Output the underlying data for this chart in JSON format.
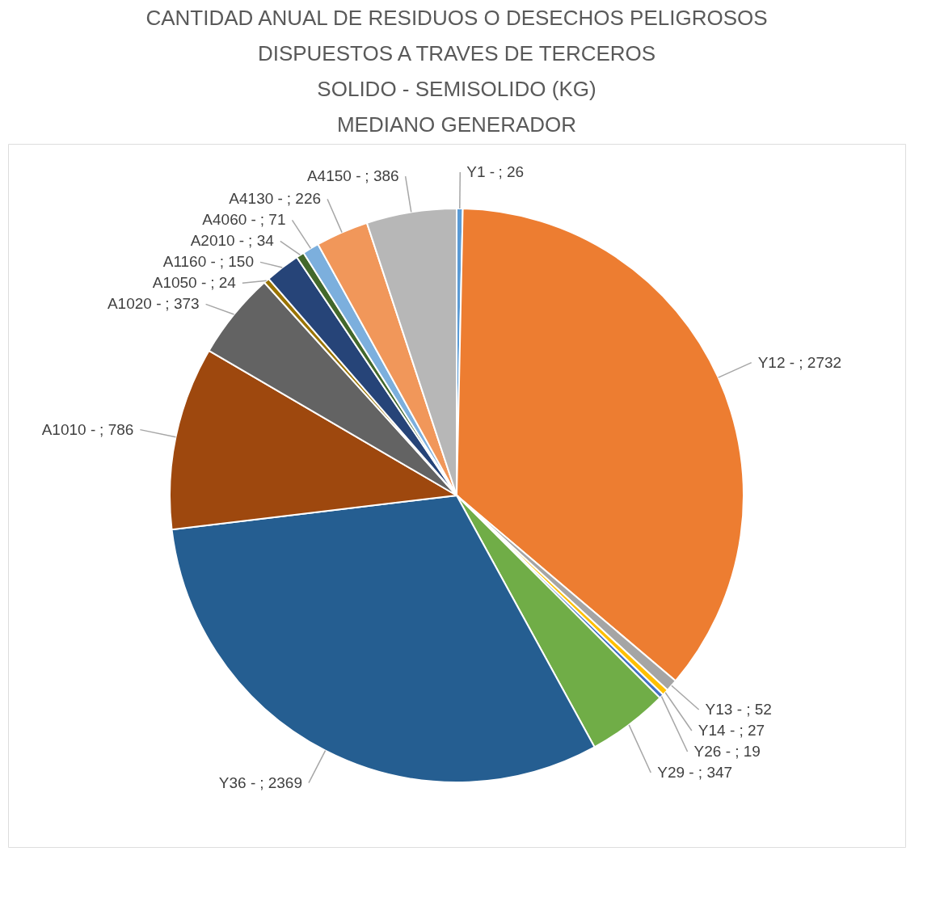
{
  "chart_data": {
    "type": "pie",
    "title": [
      "CANTIDAD ANUAL DE RESIDUOS O DESECHOS PELIGROSOS",
      "DISPUESTOS A TRAVES DE TERCEROS",
      "SOLIDO - SEMISOLIDO (KG)",
      "MEDIANO GENERADOR"
    ],
    "categories": [
      "Y1 -",
      "Y12 -",
      "Y13 -",
      "Y14 -",
      "Y26 -",
      "Y29 -",
      "Y36 -",
      "A1010 -",
      "A1020 -",
      "A1050 -",
      "A1160 -",
      "A2010 -",
      "A4060 -",
      "A4130 -",
      "A4150 -"
    ],
    "values": [
      26,
      2732,
      52,
      27,
      19,
      347,
      2369,
      786,
      373,
      24,
      150,
      34,
      71,
      226,
      386
    ],
    "colors": [
      "#5b9bd5",
      "#ed7d31",
      "#a5a5a5",
      "#ffc000",
      "#4472c4",
      "#70ad47",
      "#255e91",
      "#9e480e",
      "#636363",
      "#997300",
      "#264478",
      "#43682b",
      "#7cafdd",
      "#f1975a",
      "#b7b7b7"
    ],
    "value_labels": [
      "; 26",
      "; 2732",
      "; 52",
      "; 27",
      "; 19",
      "; 347",
      "; 2369",
      "; 786",
      "; 373",
      "; 24",
      "; 150",
      "; 34",
      "; 71",
      "; 226",
      "; 386"
    ],
    "legend": false
  }
}
